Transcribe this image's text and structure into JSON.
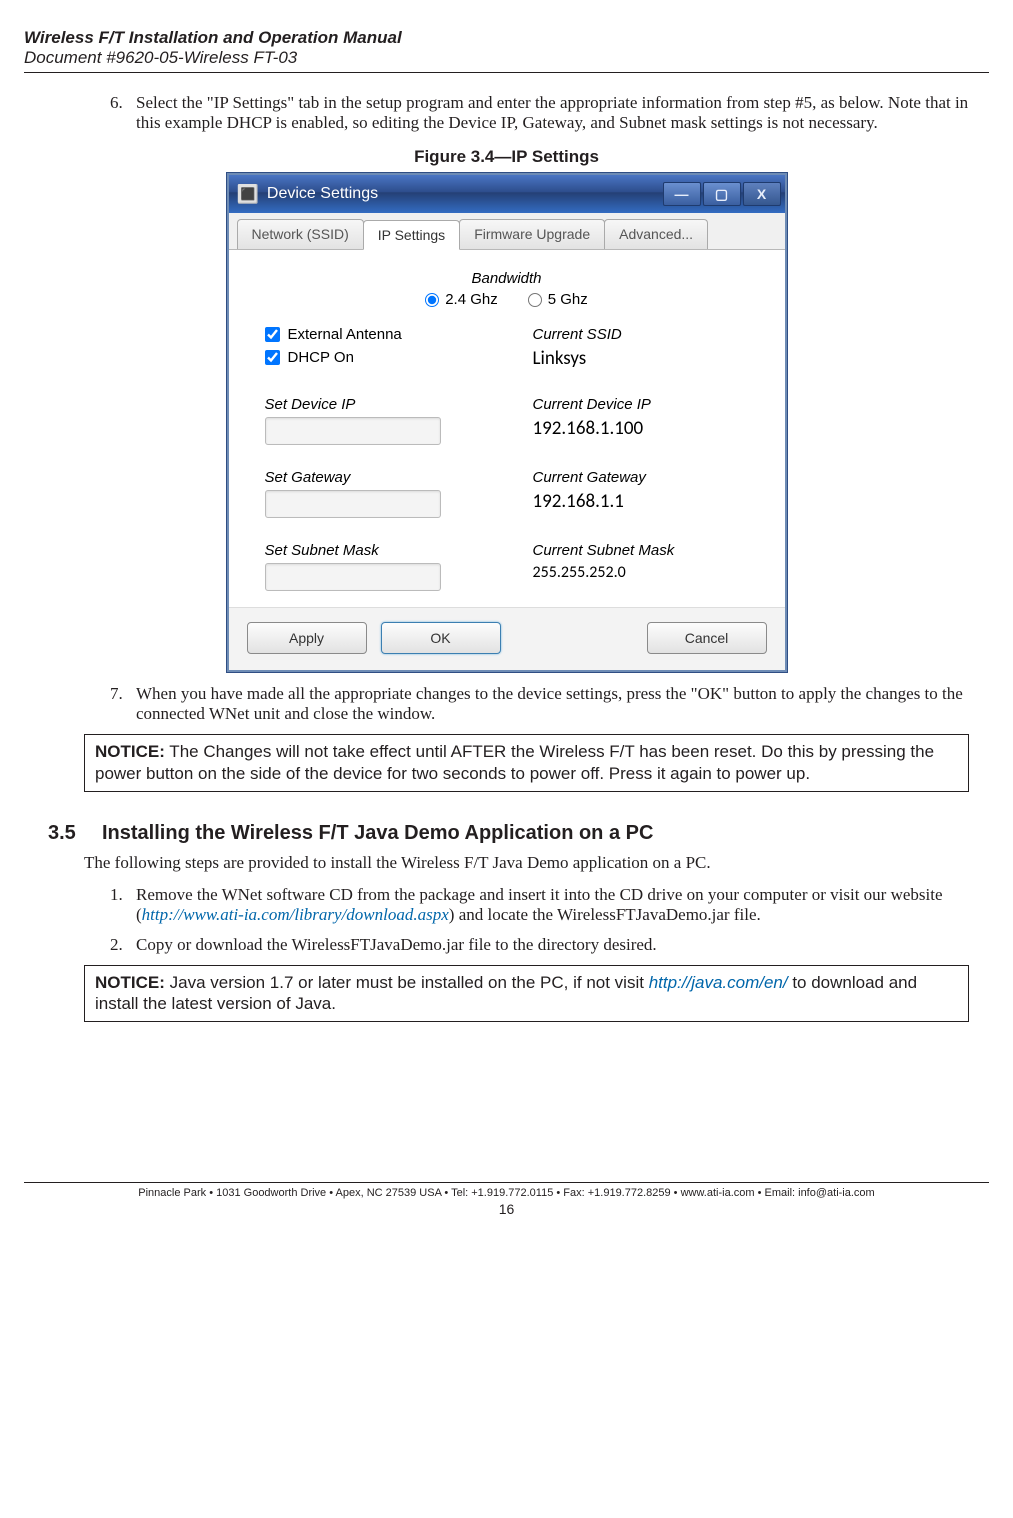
{
  "header": {
    "title": "Wireless F/T Installation and Operation Manual",
    "sub": "Document #9620-05-Wireless FT-03"
  },
  "step6": {
    "num": "6.",
    "text": "Select the \"IP Settings\" tab in the setup program and enter the appropriate information from step #5, as below. Note that in this example DHCP is enabled, so editing the Device IP, Gateway, and Subnet mask settings is not necessary."
  },
  "figure_caption": "Figure 3.4—IP Settings",
  "window": {
    "title": "Device Settings",
    "tabs": {
      "network": "Network (SSID)",
      "ip": "IP Settings",
      "fw": "Firmware Upgrade",
      "adv": "Advanced..."
    },
    "bandwidth_label": "Bandwidth",
    "bw24": "2.4 Ghz",
    "bw5": "5 Ghz",
    "ext_antenna": "External Antenna",
    "dhcp_on": "DHCP On",
    "set_device_ip": "Set Device IP",
    "set_gateway": "Set Gateway",
    "set_subnet": "Set Subnet Mask",
    "current_ssid_label": "Current SSID",
    "current_ssid": "Linksys",
    "current_ip_label": "Current Device IP",
    "current_ip": "192.168.1.100",
    "current_gw_label": "Current Gateway",
    "current_gw": "192.168.1.1",
    "current_mask_label": "Current Subnet Mask",
    "current_mask": "255.255.252.0",
    "apply": "Apply",
    "ok": "OK",
    "cancel": "Cancel"
  },
  "step7": {
    "num": "7.",
    "text": "When you have made all the appropriate changes to the device settings, press the \"OK\" button to apply the changes to the connected WNet unit and close the window."
  },
  "notice1_label": "NOTICE:",
  "notice1": " The Changes will not take effect until AFTER the Wireless F/T has been reset. Do this by pressing the power button on the side of the device for two seconds to power off. Press it again to power up.",
  "section": {
    "num": "3.5",
    "title": "Installing the Wireless F/T Java Demo Application on a PC",
    "intro": "The following steps are provided to install the Wireless F/T Java Demo application on a PC."
  },
  "s1": {
    "num": "1.",
    "pre": "Remove the WNet software CD from the package and insert it into the CD drive on your computer or visit our website (",
    "link": "http://www.ati-ia.com/library/download.aspx",
    "post": ") and locate the WirelessFTJavaDemo.jar file."
  },
  "s2": {
    "num": "2.",
    "text": "Copy or download the WirelessFTJavaDemo.jar file to the directory desired."
  },
  "notice2_label": "NOTICE:",
  "notice2_pre": " Java version 1.7 or later must be installed on the PC, if not visit ",
  "notice2_link": "http://java.com/en/",
  "notice2_post": " to download and install the latest version of Java.",
  "footer": {
    "line": "Pinnacle Park • 1031 Goodworth Drive • Apex, NC 27539 USA • Tel: +1.919.772.0115 • Fax: +1.919.772.8259 • www.ati-ia.com • Email: info@ati-ia.com",
    "page": "16"
  }
}
